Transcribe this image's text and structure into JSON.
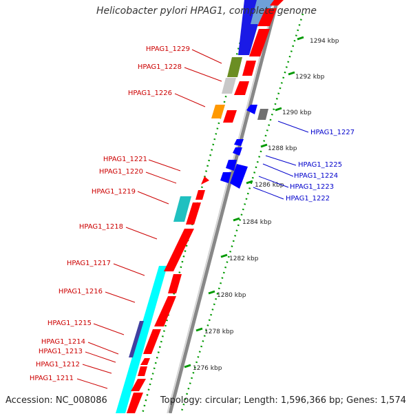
{
  "title": "Helicobacter pylori HPAG1, complete genome",
  "accession": "Accession: NC_008086",
  "topology": "Topology: circular; Length: 1,596,366 bp; Genes: 1,574",
  "ticks": [
    {
      "label": "1294 kbp"
    },
    {
      "label": "1292 kbp"
    },
    {
      "label": "1290 kbp"
    },
    {
      "label": "1288 kbp"
    },
    {
      "label": "1286 kbp"
    },
    {
      "label": "1284 kbp"
    },
    {
      "label": "1282 kbp"
    },
    {
      "label": "1280 kbp"
    },
    {
      "label": "1278 kbp"
    },
    {
      "label": "1276 kbp"
    }
  ],
  "genes_left": [
    "HPAG1_1229",
    "HPAG1_1228",
    "HPAG1_1226",
    "HPAG1_1221",
    "HPAG1_1220",
    "HPAG1_1219",
    "HPAG1_1218",
    "HPAG1_1217",
    "HPAG1_1216",
    "HPAG1_1215",
    "HPAG1_1214",
    "HPAG1_1213",
    "HPAG1_1212",
    "HPAG1_1211"
  ],
  "genes_right": [
    "HPAG1_1227",
    "HPAG1_1225",
    "HPAG1_1224",
    "HPAG1_1223",
    "HPAG1_1222"
  ],
  "colors": {
    "forward_gene": "#ff0000",
    "reverse_gene": "#0000ff",
    "left_label": "#cc0000",
    "right_label": "#0000cc",
    "backbone": "#808080",
    "tick": "#00aa00",
    "cyan_feature": "#00ffff",
    "teal_feature": "#20c0c0",
    "olive_feature": "#6b8e23",
    "orange_feature": "#ff9900",
    "indigo_feature": "#4040a0",
    "grey_feature": "#c8c8c8",
    "dark_grey_feature": "#707070"
  }
}
